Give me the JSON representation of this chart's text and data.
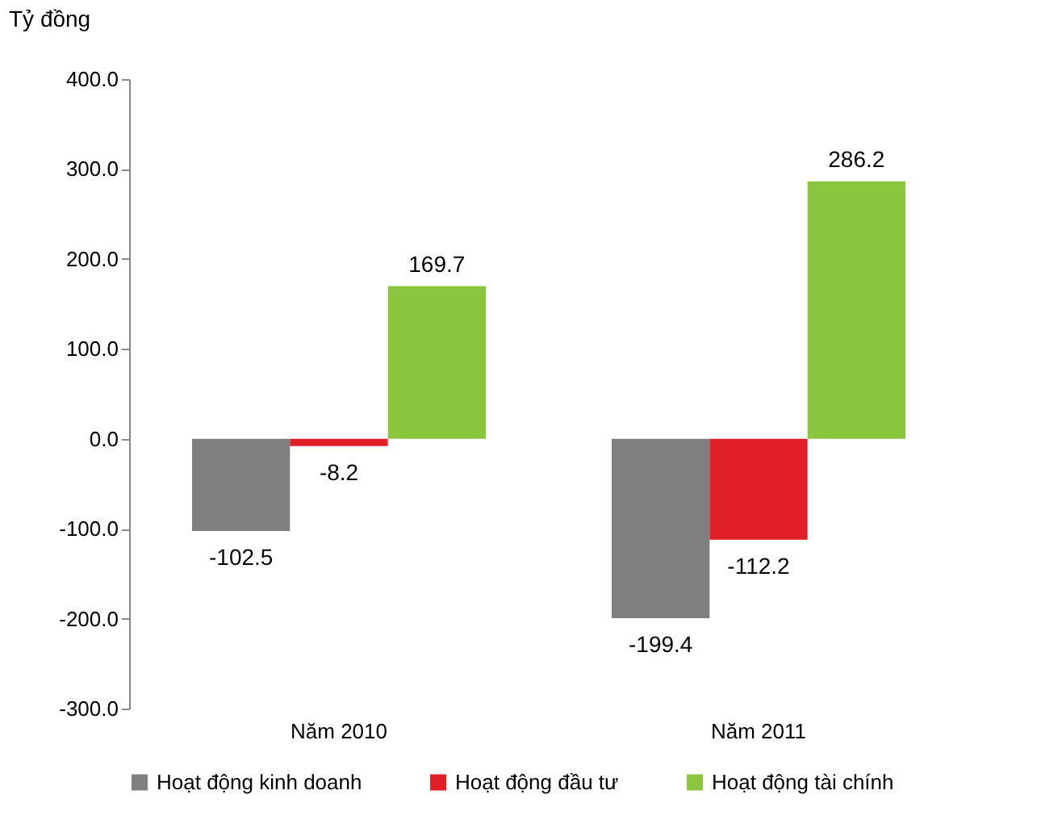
{
  "chart_data": {
    "type": "bar",
    "ylabel": "Tỷ đồng",
    "categories": [
      "Năm 2010",
      "Năm 2011"
    ],
    "series": [
      {
        "name": "Hoạt động kinh doanh",
        "color": "#808080",
        "values": [
          -102.5,
          -199.4
        ]
      },
      {
        "name": "Hoạt động đầu tư",
        "color": "#e01f26",
        "values": [
          -8.2,
          -112.2
        ]
      },
      {
        "name": "Hoạt động tài chính",
        "color": "#8cc63f",
        "values": [
          169.7,
          286.2
        ]
      }
    ],
    "ylim": [
      -300,
      400
    ],
    "yticks": [
      {
        "value": -300,
        "label": "-300.0"
      },
      {
        "value": -200,
        "label": "-200.0"
      },
      {
        "value": -100,
        "label": "-100.0"
      },
      {
        "value": 0,
        "label": "0.0"
      },
      {
        "value": 100,
        "label": "100.0"
      },
      {
        "value": 200,
        "label": "200.0"
      },
      {
        "value": 300,
        "label": "300.0"
      },
      {
        "value": 400,
        "label": "400.0"
      }
    ],
    "data_labels": true,
    "grid": false,
    "legend": "bottom"
  }
}
